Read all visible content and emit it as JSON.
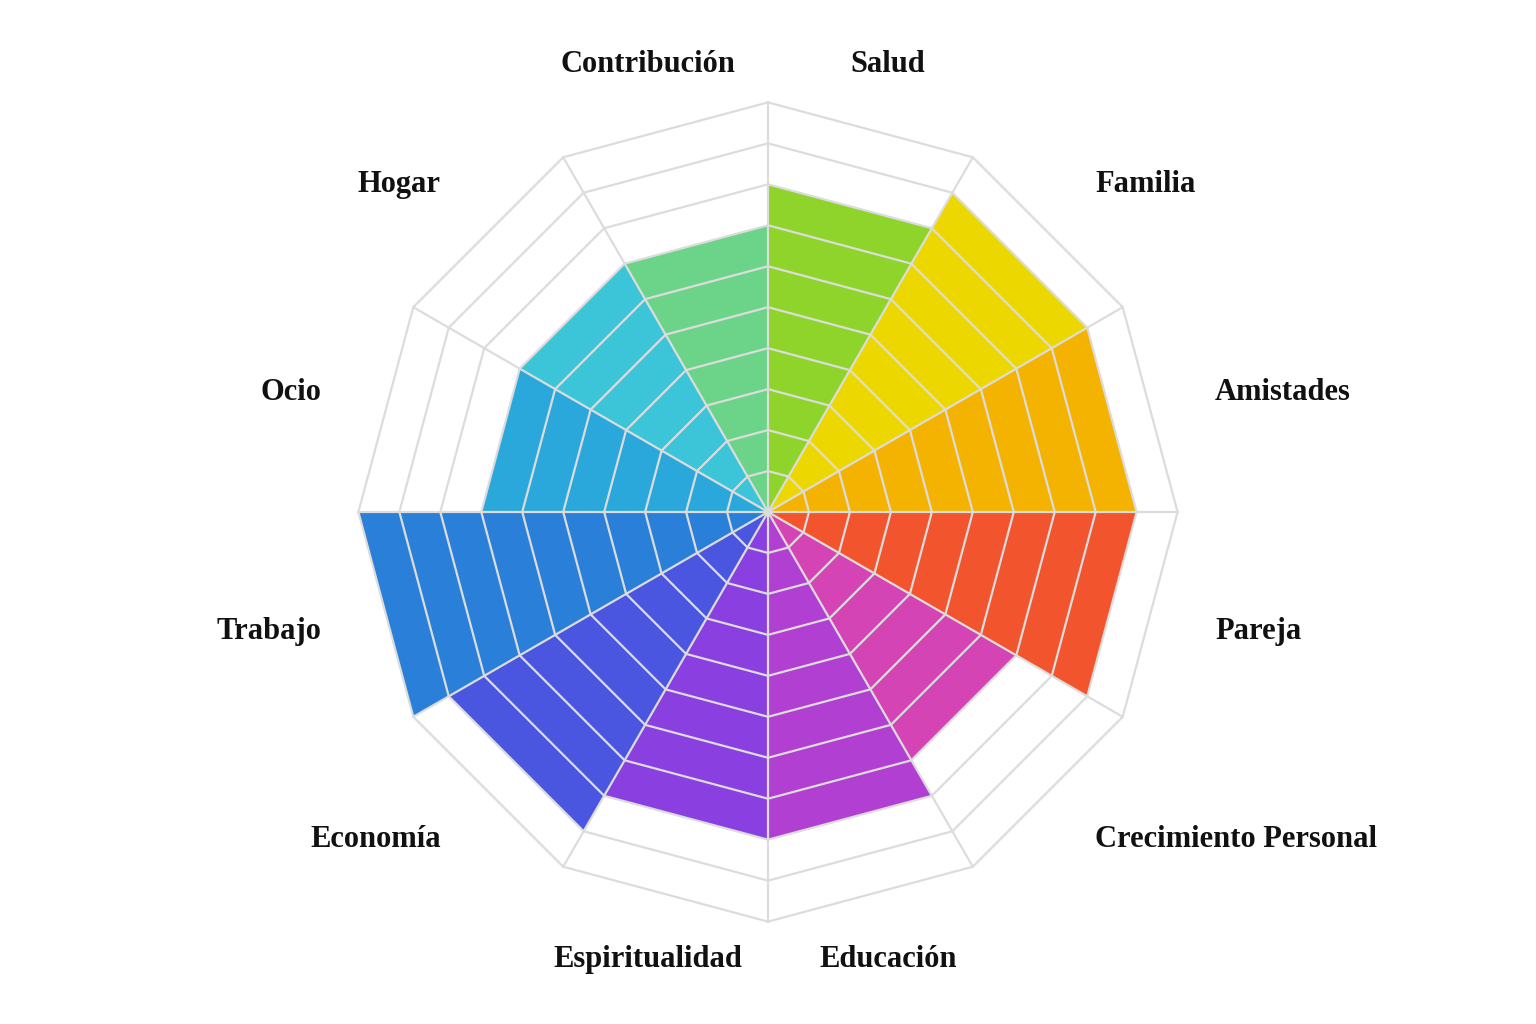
{
  "chart_data": {
    "type": "radar",
    "categories": [
      "Salud",
      "Familia",
      "Amistades",
      "Pareja",
      "Crecimiento Personal",
      "Educación",
      "Espiritualidad",
      "Economía",
      "Trabajo",
      "Ocio",
      "Hogar",
      "Contribución"
    ],
    "values": [
      8,
      9,
      9,
      9,
      7,
      8,
      8,
      9,
      10,
      7,
      7,
      7
    ],
    "colors": [
      "#8fd42a",
      "#ecd800",
      "#f3b300",
      "#f2542d",
      "#d444b4",
      "#b13fd2",
      "#8a3fe0",
      "#4a55e0",
      "#2a7fd8",
      "#2aa8dc",
      "#3cc4d8",
      "#6cd488"
    ],
    "ylim": [
      0,
      10
    ],
    "yticks": [
      0,
      1,
      2,
      3,
      4,
      5,
      6,
      7,
      8,
      9,
      10
    ],
    "grid": true,
    "tick_labels": false
  }
}
